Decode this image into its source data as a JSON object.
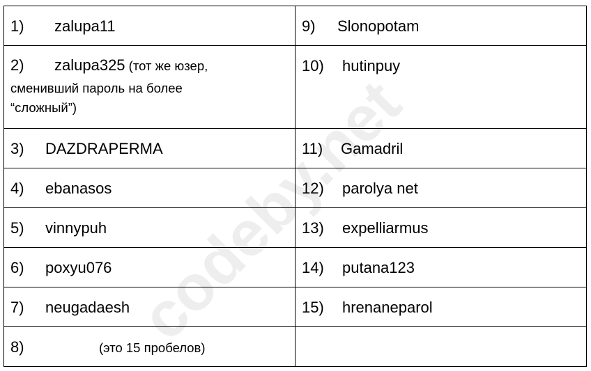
{
  "watermark": "codeby.net",
  "rows": [
    {
      "left": {
        "num": "1)",
        "text": "zalupa11",
        "note": ""
      },
      "right": {
        "num": "9)",
        "text": "Slonopotam"
      }
    },
    {
      "left": {
        "num": "2)",
        "text": "zalupa325",
        "note": " (тот же юзер,",
        "note2": "сменивший пароль на более",
        "note3": "“сложный”)"
      },
      "right": {
        "num": "10)",
        "text": "hutinpuy"
      }
    },
    {
      "left": {
        "num": "3)",
        "text": "DAZDRAPERMA"
      },
      "right": {
        "num": "11)",
        "text": "Gamadril"
      }
    },
    {
      "left": {
        "num": "4)",
        "text": "ebanasos"
      },
      "right": {
        "num": "12)",
        "text": "parolya net"
      }
    },
    {
      "left": {
        "num": "5)",
        "text": "vinnypuh"
      },
      "right": {
        "num": "13)",
        "text": "expelliarmus"
      }
    },
    {
      "left": {
        "num": "6)",
        "text": "poxyu076"
      },
      "right": {
        "num": "14)",
        "text": "putana123"
      }
    },
    {
      "left": {
        "num": "7)",
        "text": "neugadaesh"
      },
      "right": {
        "num": "15)",
        "text": "hrenaneparol"
      }
    },
    {
      "left": {
        "num": "8)",
        "text": "",
        "note": "(это 15 пробелов)"
      },
      "right": {
        "num": "",
        "text": ""
      }
    }
  ]
}
